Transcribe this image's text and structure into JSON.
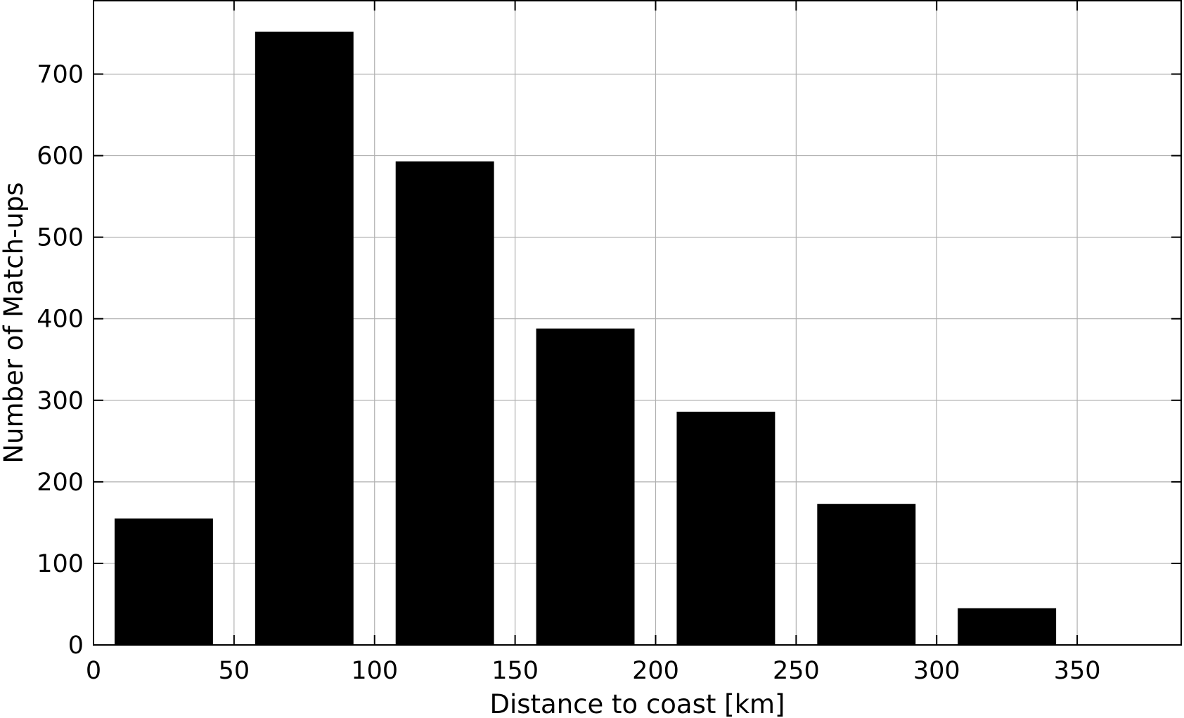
{
  "chart_data": {
    "type": "bar",
    "xlabel": "Distance to coast [km]",
    "ylabel": "Number of Match-ups",
    "xlim": [
      0,
      387
    ],
    "ylim": [
      0,
      790
    ],
    "xticks": [
      0,
      50,
      100,
      150,
      200,
      250,
      300,
      350
    ],
    "yticks": [
      0,
      100,
      200,
      300,
      400,
      500,
      600,
      700
    ],
    "bar_color": "#000000",
    "grid": true,
    "bars": [
      {
        "x_start": 7.5,
        "x_end": 42.5,
        "value": 155
      },
      {
        "x_start": 57.5,
        "x_end": 92.5,
        "value": 752
      },
      {
        "x_start": 107.5,
        "x_end": 142.5,
        "value": 593
      },
      {
        "x_start": 157.5,
        "x_end": 192.5,
        "value": 388
      },
      {
        "x_start": 207.5,
        "x_end": 242.5,
        "value": 286
      },
      {
        "x_start": 257.5,
        "x_end": 292.5,
        "value": 173
      },
      {
        "x_start": 307.5,
        "x_end": 342.5,
        "value": 45
      }
    ]
  }
}
